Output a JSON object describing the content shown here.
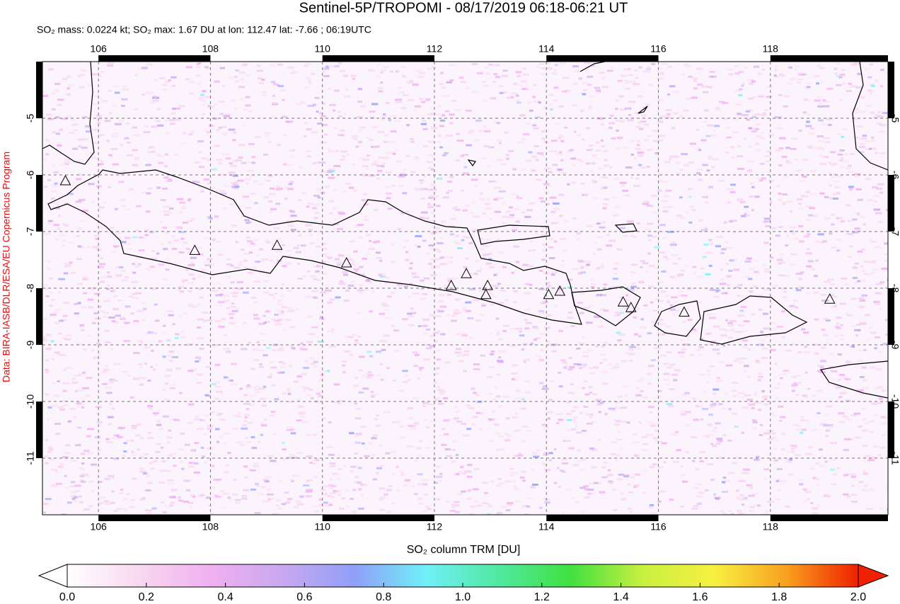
{
  "chart_data": {
    "type": "map",
    "title": "Sentinel-5P/TROPOMI - 08/17/2019 06:18-06:21 UT",
    "subtitle": "SO₂ mass: 0.0224 kt; SO₂ max: 1.67 DU at lon: 112.47 lat: -7.66 ; 06:19UTC",
    "credit": "Data: BIRA-IASB/DLR/ESA/EU Copernicus Program",
    "xlim": [
      105,
      120.1
    ],
    "ylim": [
      -12,
      -4
    ],
    "xticks": [
      106,
      108,
      110,
      112,
      114,
      116,
      118
    ],
    "yticks": [
      -5,
      -6,
      -7,
      -8,
      -9,
      -10,
      -11
    ],
    "grid": true,
    "volcanoes": {
      "lon": [
        105.41,
        107.72,
        109.19,
        110.43,
        112.3,
        112.57,
        112.95,
        112.92,
        114.04,
        114.24,
        115.37,
        115.51,
        116.46,
        119.06
      ],
      "lat": [
        -6.1,
        -7.33,
        -7.24,
        -7.55,
        -7.95,
        -7.74,
        -7.95,
        -8.11,
        -8.11,
        -8.05,
        -8.24,
        -8.34,
        -8.42,
        -8.19
      ],
      "color": "#000000"
    },
    "colorbar": {
      "label": "SO₂ column TRM [DU]",
      "lim": [
        0,
        2
      ],
      "ticks": [
        {
          "value": 0,
          "label": "0.0"
        },
        0.2,
        0.4,
        0.6,
        0.8,
        {
          "value": 1,
          "label": "1.0"
        },
        1.2,
        1.4,
        1.6,
        1.8,
        {
          "value": 2,
          "label": "2.0"
        }
      ],
      "colors": [
        "#ffffff",
        "#f8d8f0",
        "#f0b0f0",
        "#c8a8f0",
        "#90a0f8",
        "#70f0f8",
        "#50e8a0",
        "#40e040",
        "#c8f040",
        "#f8f040",
        "#f8a020",
        "#f02000"
      ]
    }
  }
}
